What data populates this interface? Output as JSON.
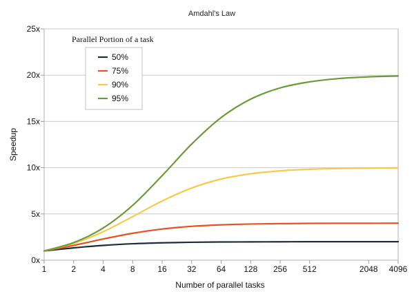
{
  "chart_data": {
    "type": "line",
    "title": "Amdahl's Law",
    "xlabel": "Number of parallel tasks",
    "ylabel": "Speedup",
    "x_scale": "log2",
    "x_ticks": [
      "1",
      "2",
      "4",
      "8",
      "16",
      "32",
      "64",
      "128",
      "256",
      "512",
      "2048",
      "4096"
    ],
    "x": [
      1,
      2,
      4,
      8,
      16,
      32,
      64,
      128,
      256,
      512,
      1024,
      2048,
      4096
    ],
    "y_ticks": [
      "0x",
      "5x",
      "10x",
      "15x",
      "20x",
      "25x"
    ],
    "ylim": [
      0,
      25
    ],
    "grid": "horizontal",
    "legend": {
      "title": "Parallel Portion of a task",
      "placement": "top-left"
    },
    "series": [
      {
        "name": "50%",
        "color": "#1f2a3a",
        "values": [
          1.0,
          1.33,
          1.6,
          1.78,
          1.88,
          1.94,
          1.97,
          1.98,
          1.99,
          2.0,
          2.0,
          2.0,
          2.0
        ]
      },
      {
        "name": "75%",
        "color": "#e8501e",
        "values": [
          1.0,
          1.6,
          2.29,
          2.91,
          3.37,
          3.66,
          3.82,
          3.91,
          3.95,
          3.98,
          3.99,
          3.99,
          4.0
        ]
      },
      {
        "name": "90%",
        "color": "#f7c94b",
        "values": [
          1.0,
          1.82,
          3.08,
          4.71,
          6.4,
          7.8,
          8.77,
          9.34,
          9.66,
          9.83,
          9.91,
          9.96,
          9.98
        ]
      },
      {
        "name": "95%",
        "color": "#6a9a3a",
        "values": [
          1.0,
          1.9,
          3.48,
          5.93,
          9.14,
          12.55,
          15.42,
          17.41,
          18.62,
          19.28,
          19.64,
          19.82,
          19.91
        ]
      }
    ]
  }
}
